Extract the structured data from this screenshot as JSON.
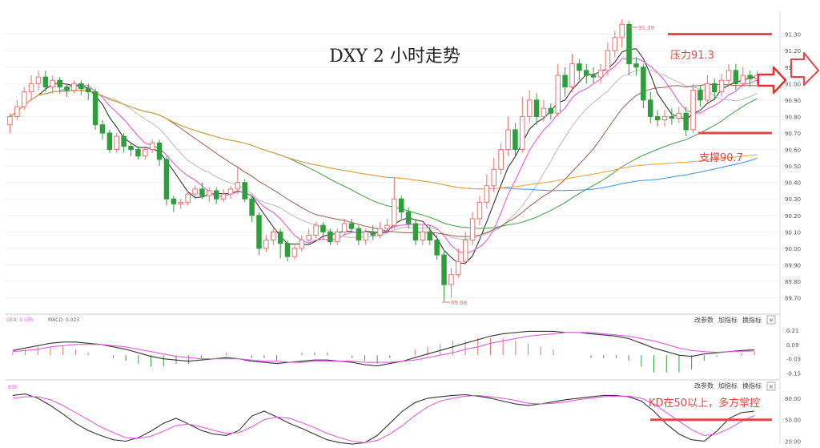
{
  "chart_data": [
    {
      "type": "candlestick",
      "title": "DXY 2 小时走势",
      "y_ticks": [
        91.3,
        91.2,
        91.1,
        91.0,
        90.9,
        90.8,
        90.7,
        90.6,
        90.5,
        90.4,
        90.3,
        90.2,
        90.1,
        90.0,
        89.9,
        89.8,
        89.7
      ],
      "y_tick_labels": [
        "91.30",
        "91.20",
        "91.10",
        "91.00",
        "90.90",
        "90.80",
        "90.70",
        "90.60",
        "90.50",
        "90.40",
        "90.30",
        "90.20",
        "90.10",
        "90.00",
        "89.90",
        "89.80",
        "89.70"
      ],
      "ylim": [
        89.62,
        91.42
      ],
      "high_label": "91.39",
      "low_label": "89.68",
      "resistance": {
        "label": "压力91.3",
        "value": 91.3
      },
      "support": {
        "label": "支撑90.7",
        "value": 90.7
      },
      "colors": {
        "up": "#e8716e",
        "down": "#2e9e3c",
        "level": "#e64545",
        "arrow": "#e03030"
      },
      "ma_colors": [
        "#333333",
        "#e35ce0",
        "#bbbbbb",
        "#9b5a4a",
        "#3f9d3f",
        "#3c8ee0",
        "#f0a030"
      ],
      "candles": [
        [
          90.75,
          90.8,
          90.7,
          90.82
        ],
        [
          90.8,
          90.86,
          90.78,
          90.9
        ],
        [
          90.86,
          90.95,
          90.84,
          90.98
        ],
        [
          90.95,
          91.0,
          90.9,
          91.05
        ],
        [
          91.0,
          91.04,
          90.96,
          91.08
        ],
        [
          91.04,
          90.98,
          90.95,
          91.08
        ],
        [
          90.98,
          91.02,
          90.94,
          91.05
        ],
        [
          91.02,
          90.98,
          90.94,
          91.04
        ],
        [
          90.98,
          90.96,
          90.92,
          91.0
        ],
        [
          90.96,
          91.0,
          90.94,
          91.02
        ],
        [
          91.0,
          90.97,
          90.93,
          91.02
        ],
        [
          90.97,
          90.95,
          90.9,
          91.0
        ],
        [
          90.95,
          90.75,
          90.72,
          90.97
        ],
        [
          90.75,
          90.7,
          90.66,
          90.78
        ],
        [
          90.7,
          90.6,
          90.58,
          90.72
        ],
        [
          90.6,
          90.68,
          90.58,
          90.7
        ],
        [
          90.68,
          90.62,
          90.58,
          90.7
        ],
        [
          90.62,
          90.6,
          90.56,
          90.64
        ],
        [
          90.6,
          90.56,
          90.54,
          90.62
        ],
        [
          90.56,
          90.6,
          90.54,
          90.62
        ],
        [
          90.6,
          90.64,
          90.58,
          90.66
        ],
        [
          90.64,
          90.54,
          90.5,
          90.66
        ],
        [
          90.54,
          90.3,
          90.26,
          90.56
        ],
        [
          90.3,
          90.27,
          90.22,
          90.32
        ],
        [
          90.27,
          90.28,
          90.24,
          90.3
        ],
        [
          90.28,
          90.33,
          90.26,
          90.35
        ],
        [
          90.33,
          90.36,
          90.3,
          90.38
        ],
        [
          90.36,
          90.32,
          90.3,
          90.4
        ],
        [
          90.32,
          90.35,
          90.28,
          90.37
        ],
        [
          90.35,
          90.3,
          90.27,
          90.37
        ],
        [
          90.3,
          90.33,
          90.28,
          90.36
        ],
        [
          90.33,
          90.36,
          90.3,
          90.38
        ],
        [
          90.36,
          90.4,
          90.33,
          90.5
        ],
        [
          90.4,
          90.3,
          90.28,
          90.42
        ],
        [
          90.3,
          90.2,
          90.16,
          90.32
        ],
        [
          90.2,
          90.0,
          89.96,
          90.22
        ],
        [
          90.0,
          90.05,
          89.98,
          90.08
        ],
        [
          90.05,
          90.1,
          90.02,
          90.12
        ],
        [
          90.1,
          90.03,
          89.94,
          90.12
        ],
        [
          90.03,
          89.95,
          89.92,
          90.05
        ],
        [
          89.95,
          90.0,
          89.93,
          90.02
        ],
        [
          90.0,
          90.05,
          89.98,
          90.08
        ],
        [
          90.05,
          90.08,
          90.02,
          90.12
        ],
        [
          90.08,
          90.14,
          90.06,
          90.16
        ],
        [
          90.14,
          90.1,
          90.06,
          90.16
        ],
        [
          90.1,
          90.04,
          90.02,
          90.12
        ],
        [
          90.04,
          90.1,
          90.02,
          90.12
        ],
        [
          90.1,
          90.15,
          90.08,
          90.18
        ],
        [
          90.15,
          90.12,
          90.1,
          90.18
        ],
        [
          90.12,
          90.05,
          90.02,
          90.14
        ],
        [
          90.05,
          90.1,
          90.02,
          90.12
        ],
        [
          90.1,
          90.08,
          90.05,
          90.14
        ],
        [
          90.08,
          90.12,
          90.06,
          90.16
        ],
        [
          90.12,
          90.14,
          90.1,
          90.18
        ],
        [
          90.14,
          90.3,
          90.12,
          90.43
        ],
        [
          90.3,
          90.22,
          90.18,
          90.32
        ],
        [
          90.22,
          90.15,
          90.12,
          90.25
        ],
        [
          90.15,
          90.05,
          90.02,
          90.18
        ],
        [
          90.05,
          90.1,
          90.02,
          90.14
        ],
        [
          90.1,
          90.05,
          90.02,
          90.14
        ],
        [
          90.05,
          89.96,
          89.93,
          90.08
        ],
        [
          89.96,
          89.78,
          89.68,
          89.98
        ],
        [
          89.78,
          89.84,
          89.7,
          89.88
        ],
        [
          89.84,
          89.92,
          89.82,
          90.0
        ],
        [
          89.92,
          90.05,
          89.9,
          90.1
        ],
        [
          90.05,
          90.18,
          90.02,
          90.22
        ],
        [
          90.18,
          90.28,
          90.14,
          90.32
        ],
        [
          90.28,
          90.38,
          90.24,
          90.45
        ],
        [
          90.38,
          90.48,
          90.34,
          90.55
        ],
        [
          90.48,
          90.6,
          90.45,
          90.64
        ],
        [
          90.6,
          90.72,
          90.56,
          90.8
        ],
        [
          90.72,
          90.6,
          90.55,
          90.76
        ],
        [
          90.6,
          90.8,
          90.58,
          90.92
        ],
        [
          90.8,
          90.9,
          90.76,
          90.96
        ],
        [
          90.9,
          90.8,
          90.75,
          90.94
        ],
        [
          90.8,
          90.85,
          90.77,
          90.9
        ],
        [
          90.85,
          90.82,
          90.78,
          90.88
        ],
        [
          90.82,
          91.05,
          90.8,
          91.12
        ],
        [
          91.05,
          90.98,
          90.92,
          91.1
        ],
        [
          90.98,
          91.12,
          90.95,
          91.18
        ],
        [
          91.12,
          91.08,
          91.02,
          91.15
        ],
        [
          91.08,
          91.05,
          91.0,
          91.12
        ],
        [
          91.05,
          91.04,
          91.0,
          91.1
        ],
        [
          91.04,
          91.08,
          91.0,
          91.12
        ],
        [
          91.08,
          91.2,
          91.05,
          91.25
        ],
        [
          91.2,
          91.28,
          91.16,
          91.32
        ],
        [
          91.28,
          91.36,
          91.22,
          91.39
        ],
        [
          91.36,
          91.12,
          91.05,
          91.38
        ],
        [
          91.12,
          91.1,
          91.05,
          91.16
        ],
        [
          91.1,
          90.9,
          90.85,
          91.12
        ],
        [
          90.9,
          90.8,
          90.76,
          90.95
        ],
        [
          90.8,
          90.78,
          90.74,
          90.84
        ],
        [
          90.78,
          90.8,
          90.74,
          90.84
        ],
        [
          90.8,
          90.79,
          90.75,
          90.85
        ],
        [
          90.79,
          90.82,
          90.76,
          90.86
        ],
        [
          90.82,
          90.72,
          90.68,
          90.86
        ],
        [
          90.72,
          90.96,
          90.7,
          91.0
        ],
        [
          90.96,
          90.9,
          90.86,
          90.99
        ],
        [
          90.9,
          91.0,
          90.88,
          91.05
        ],
        [
          91.0,
          90.95,
          90.9,
          91.03
        ],
        [
          90.95,
          91.02,
          90.92,
          91.06
        ],
        [
          91.02,
          91.08,
          90.98,
          91.12
        ],
        [
          91.08,
          91.0,
          90.96,
          91.12
        ],
        [
          91.0,
          91.05,
          90.98,
          91.1
        ],
        [
          91.05,
          91.03,
          90.98,
          91.08
        ],
        [
          91.03,
          91.05,
          91.0,
          91.08
        ]
      ]
    },
    {
      "type": "macd",
      "label_dea": "DEA: 0.035",
      "label_macd": "MACD: 0.023",
      "y_ticks": [
        0.21,
        0.09,
        -0.03,
        -0.15
      ],
      "y_tick_labels": [
        "0.21",
        "0.09",
        "-0.03",
        "-0.15"
      ],
      "ylim": [
        -0.18,
        0.25
      ],
      "dif": [
        0.04,
        0.06,
        0.08,
        0.1,
        0.11,
        0.11,
        0.1,
        0.09,
        0.07,
        0.05,
        0.02,
        -0.01,
        -0.03,
        -0.04,
        -0.05,
        -0.04,
        -0.03,
        -0.02,
        -0.03,
        -0.05,
        -0.06,
        -0.07,
        -0.06,
        -0.05,
        -0.04,
        -0.04,
        -0.05,
        -0.06,
        -0.08,
        -0.09,
        -0.07,
        -0.05,
        -0.02,
        0.01,
        0.04,
        0.07,
        0.1,
        0.13,
        0.16,
        0.18,
        0.19,
        0.2,
        0.2,
        0.2,
        0.19,
        0.19,
        0.18,
        0.17,
        0.16,
        0.14,
        0.1,
        0.06,
        0.03,
        0.0,
        -0.01,
        0.01,
        0.02,
        0.03,
        0.04,
        0.045
      ],
      "dea": [
        0.03,
        0.04,
        0.05,
        0.07,
        0.08,
        0.09,
        0.09,
        0.09,
        0.08,
        0.07,
        0.05,
        0.03,
        0.01,
        -0.01,
        -0.02,
        -0.03,
        -0.03,
        -0.03,
        -0.03,
        -0.04,
        -0.05,
        -0.05,
        -0.06,
        -0.06,
        -0.05,
        -0.05,
        -0.05,
        -0.05,
        -0.06,
        -0.06,
        -0.06,
        -0.05,
        -0.04,
        -0.02,
        0.0,
        0.02,
        0.05,
        0.07,
        0.1,
        0.12,
        0.14,
        0.16,
        0.17,
        0.18,
        0.19,
        0.19,
        0.19,
        0.18,
        0.17,
        0.16,
        0.14,
        0.12,
        0.09,
        0.06,
        0.04,
        0.03,
        0.025,
        0.03,
        0.033,
        0.035
      ]
    },
    {
      "type": "kd",
      "label": ".935",
      "y_ticks": [
        80.0,
        50.0,
        20.0
      ],
      "y_tick_labels": [
        "80.00",
        "50.00",
        "20.00"
      ],
      "ylim": [
        15,
        90
      ],
      "level": 50,
      "annotation": "KD在50以上，多方掌控",
      "k": [
        84,
        86,
        80,
        70,
        58,
        45,
        35,
        28,
        22,
        20,
        25,
        34,
        45,
        52,
        44,
        35,
        30,
        28,
        35,
        55,
        62,
        54,
        45,
        38,
        30,
        22,
        18,
        16,
        18,
        28,
        45,
        62,
        74,
        80,
        82,
        84,
        85,
        83,
        80,
        76,
        72,
        70,
        72,
        75,
        78,
        80,
        82,
        84,
        84,
        82,
        76,
        62,
        44,
        30,
        22,
        20,
        34,
        52,
        60,
        62
      ],
      "d": [
        80,
        82,
        82,
        78,
        70,
        60,
        50,
        40,
        32,
        25,
        24,
        27,
        34,
        42,
        44,
        40,
        35,
        31,
        32,
        40,
        50,
        54,
        52,
        46,
        39,
        31,
        25,
        20,
        18,
        21,
        30,
        42,
        56,
        68,
        76,
        80,
        83,
        84,
        82,
        80,
        77,
        73,
        72,
        73,
        75,
        78,
        80,
        82,
        83,
        83,
        80,
        72,
        60,
        48,
        36,
        28,
        30,
        38,
        48,
        56
      ]
    }
  ],
  "toolbar": {
    "params": "改参数",
    "add": "加指标",
    "switch": "换指标",
    "close": "×"
  }
}
